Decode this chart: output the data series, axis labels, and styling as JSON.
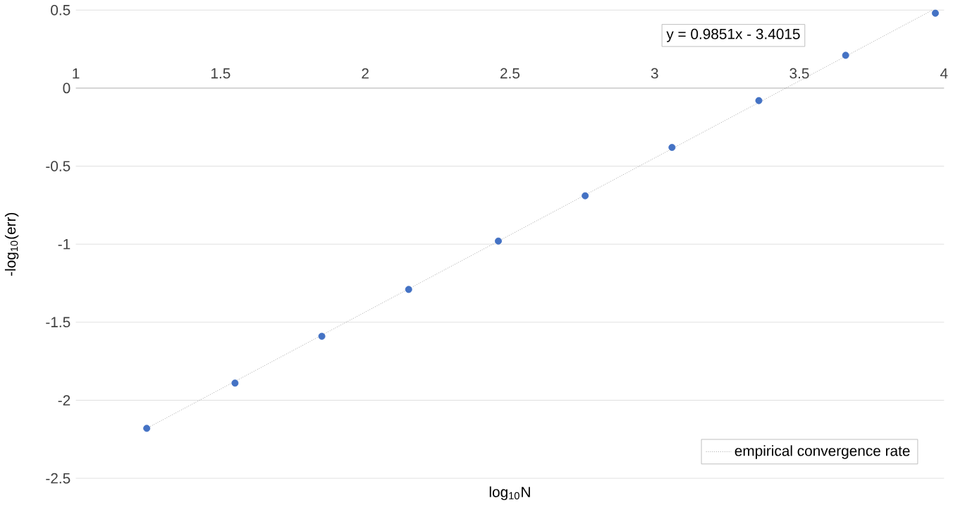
{
  "chart_data": {
    "type": "scatter",
    "xlabel": "log$_{10}$N",
    "ylabel": "-log$_{10}$(err)",
    "annotations": [
      "y = 0.9851x - 3.4015"
    ],
    "series": [
      {
        "color": "#4472c4",
        "marker": "circle",
        "x": [
          1.245,
          1.55,
          1.85,
          2.15,
          2.46,
          2.76,
          3.06,
          3.36,
          3.66,
          3.97
        ],
        "values": [
          -2.18,
          -1.89,
          -1.59,
          -1.29,
          -0.98,
          -0.69,
          -0.38,
          -0.08,
          0.21,
          0.48
        ]
      },
      {
        "type": "line",
        "name": "empirical convergence rate",
        "color": "#808080",
        "line_style": "dotted",
        "marker": "none",
        "x": [
          1.245,
          3.96
        ],
        "values": [
          -2.18,
          0.5
        ]
      }
    ],
    "xlim": [
      1,
      4
    ],
    "ylim": [
      -2.5,
      0.5
    ],
    "xticks": [
      1,
      1.5,
      2,
      2.5,
      3,
      3.5,
      4
    ],
    "yticks": [
      -2.5,
      -2,
      -1.5,
      -1,
      -0.5,
      0,
      0.5
    ],
    "grid": "y",
    "legend": "bottom right"
  }
}
